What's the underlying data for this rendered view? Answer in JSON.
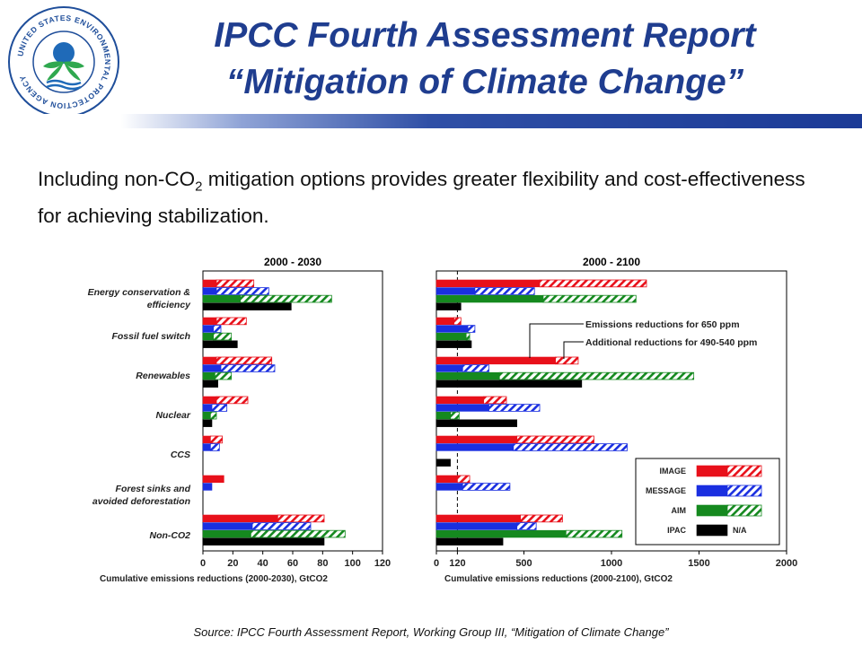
{
  "title": {
    "line1": "IPCC Fourth Assessment Report",
    "line2": "“Mitigation of Climate Change”"
  },
  "body": {
    "pre": "Including non-CO",
    "sub": "2",
    "post": " mitigation options provides greater flexibility and cost-effectiveness for achieving stabilization."
  },
  "logo": {
    "text": "UNITED STATES ENVIRONMENTAL PROTECTION AGENCY"
  },
  "source": "Source: IPCC Fourth Assessment Report, Working Group III, “Mitigation of Climate Change”",
  "colors": {
    "IMAGE": "#e8101a",
    "MESSAGE": "#1a2fe0",
    "AIM": "#15891f",
    "IPAC": "#000000",
    "title": "#1f3d8f"
  },
  "chart_data": [
    {
      "type": "bar",
      "orientation": "horizontal",
      "title": "2000 - 2030",
      "xlabel": "Cumulative emissions reductions (2000-2030), GtCO2",
      "xlim": [
        0,
        120
      ],
      "xticks": [
        "0",
        "20",
        "40",
        "60",
        "80",
        "100",
        "120"
      ],
      "categories": [
        "Energy conservation & efficiency",
        "Fossil fuel switch",
        "Renewables",
        "Nuclear",
        "CCS",
        "Forest sinks and avoided deforestation",
        "Non-CO2"
      ],
      "series": [
        {
          "name": "IMAGE",
          "solid": [
            9,
            9,
            9,
            9,
            5,
            14,
            50
          ],
          "total": [
            34,
            29,
            46,
            30,
            13,
            14,
            81
          ]
        },
        {
          "name": "MESSAGE",
          "solid": [
            9,
            7,
            12,
            6,
            5,
            6,
            33
          ],
          "total": [
            44,
            12,
            48,
            16,
            11,
            6,
            72
          ]
        },
        {
          "name": "AIM",
          "solid": [
            25,
            7,
            8,
            5,
            0,
            0,
            32
          ],
          "total": [
            86,
            19,
            19,
            9,
            0,
            0,
            95
          ]
        },
        {
          "name": "IPAC",
          "solid": [
            59,
            23,
            10,
            6,
            0,
            0,
            81
          ],
          "total": [
            59,
            23,
            10,
            6,
            0,
            0,
            81
          ]
        }
      ]
    },
    {
      "type": "bar",
      "orientation": "horizontal",
      "title": "2000 - 2100",
      "xlabel": "Cumulative emissions reductions (2000-2100), GtCO2",
      "xlim": [
        0,
        2000
      ],
      "xticks": [
        "0",
        "120",
        "500",
        "1000",
        "1500",
        "2000"
      ],
      "reference_line": 120,
      "categories": [
        "Energy conservation & efficiency",
        "Fossil fuel switch",
        "Renewables",
        "Nuclear",
        "CCS",
        "Forest sinks and avoided deforestation",
        "Non-CO2"
      ],
      "series": [
        {
          "name": "IMAGE",
          "solid": [
            590,
            100,
            680,
            270,
            460,
            120,
            480
          ],
          "total": [
            1200,
            140,
            810,
            400,
            900,
            190,
            720
          ]
        },
        {
          "name": "MESSAGE",
          "solid": [
            220,
            180,
            150,
            300,
            440,
            150,
            460
          ],
          "total": [
            560,
            220,
            300,
            590,
            1090,
            420,
            570
          ]
        },
        {
          "name": "AIM",
          "solid": [
            610,
            170,
            360,
            80,
            0,
            0,
            740
          ],
          "total": [
            1140,
            190,
            1470,
            130,
            0,
            0,
            1060
          ]
        },
        {
          "name": "IPAC",
          "solid": [
            140,
            200,
            830,
            460,
            80,
            0,
            380
          ],
          "total": [
            140,
            200,
            830,
            460,
            80,
            0,
            380
          ]
        }
      ],
      "annotations": [
        "Emissions reductions for 650 ppm",
        "Additional reductions for 490-540 ppm"
      ],
      "legend": {
        "placement": "bottom-right",
        "entries": [
          "IMAGE",
          "MESSAGE",
          "AIM",
          "IPAC"
        ],
        "ipac_hatched": "N/A"
      }
    }
  ]
}
